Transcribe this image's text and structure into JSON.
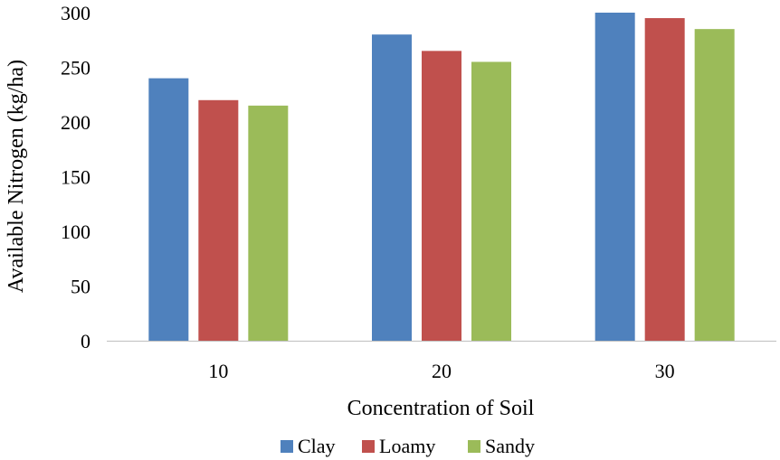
{
  "chart_data": {
    "type": "bar",
    "title": "",
    "xlabel": "Concentration of Soil",
    "ylabel": "Available Nitrogen (kg/ha)",
    "categories": [
      "10",
      "20",
      "30"
    ],
    "ylim": [
      0,
      300
    ],
    "yticks": [
      "0",
      "50",
      "100",
      "150",
      "200",
      "250",
      "300"
    ],
    "grid": false,
    "legend": "bottom",
    "series": [
      {
        "name": "Clay",
        "color": "#4F81BD",
        "values": [
          240,
          280,
          300
        ]
      },
      {
        "name": "Loamy",
        "color": "#C0504D",
        "values": [
          220,
          265,
          295
        ]
      },
      {
        "name": "Sandy",
        "color": "#9BBB59",
        "values": [
          215,
          255,
          285
        ]
      }
    ]
  }
}
